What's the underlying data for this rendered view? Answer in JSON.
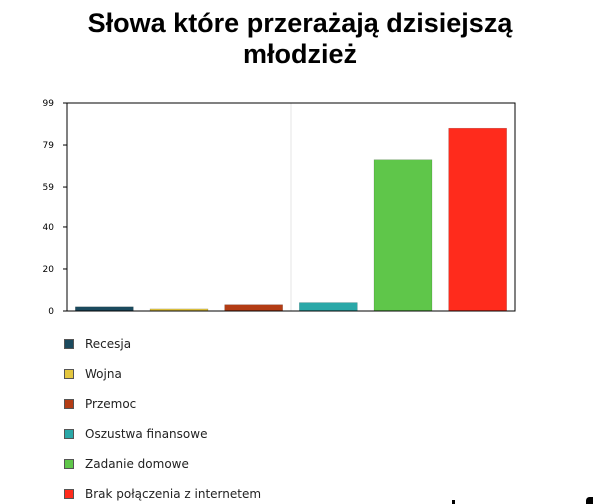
{
  "chart_data": {
    "type": "bar",
    "title": "Słowa które przerażają dzisiejszą młodzież",
    "categories": [
      "Recesja",
      "Wojna",
      "Przemoc",
      "Oszustwa finansowe",
      "Zadanie domowe",
      "Brak połączenia z internetem"
    ],
    "values": [
      2,
      1,
      3,
      4,
      72,
      87
    ],
    "colors": [
      "#1b4a5e",
      "#e3c63f",
      "#b33c14",
      "#2aa8a8",
      "#5fc64a",
      "#ff2b1c"
    ],
    "yticks": [
      0,
      20,
      40,
      59,
      79,
      99
    ],
    "ylim": [
      0,
      99
    ],
    "xlabel": "",
    "ylabel": "",
    "grid": false,
    "legend_position": "bottom-left"
  }
}
